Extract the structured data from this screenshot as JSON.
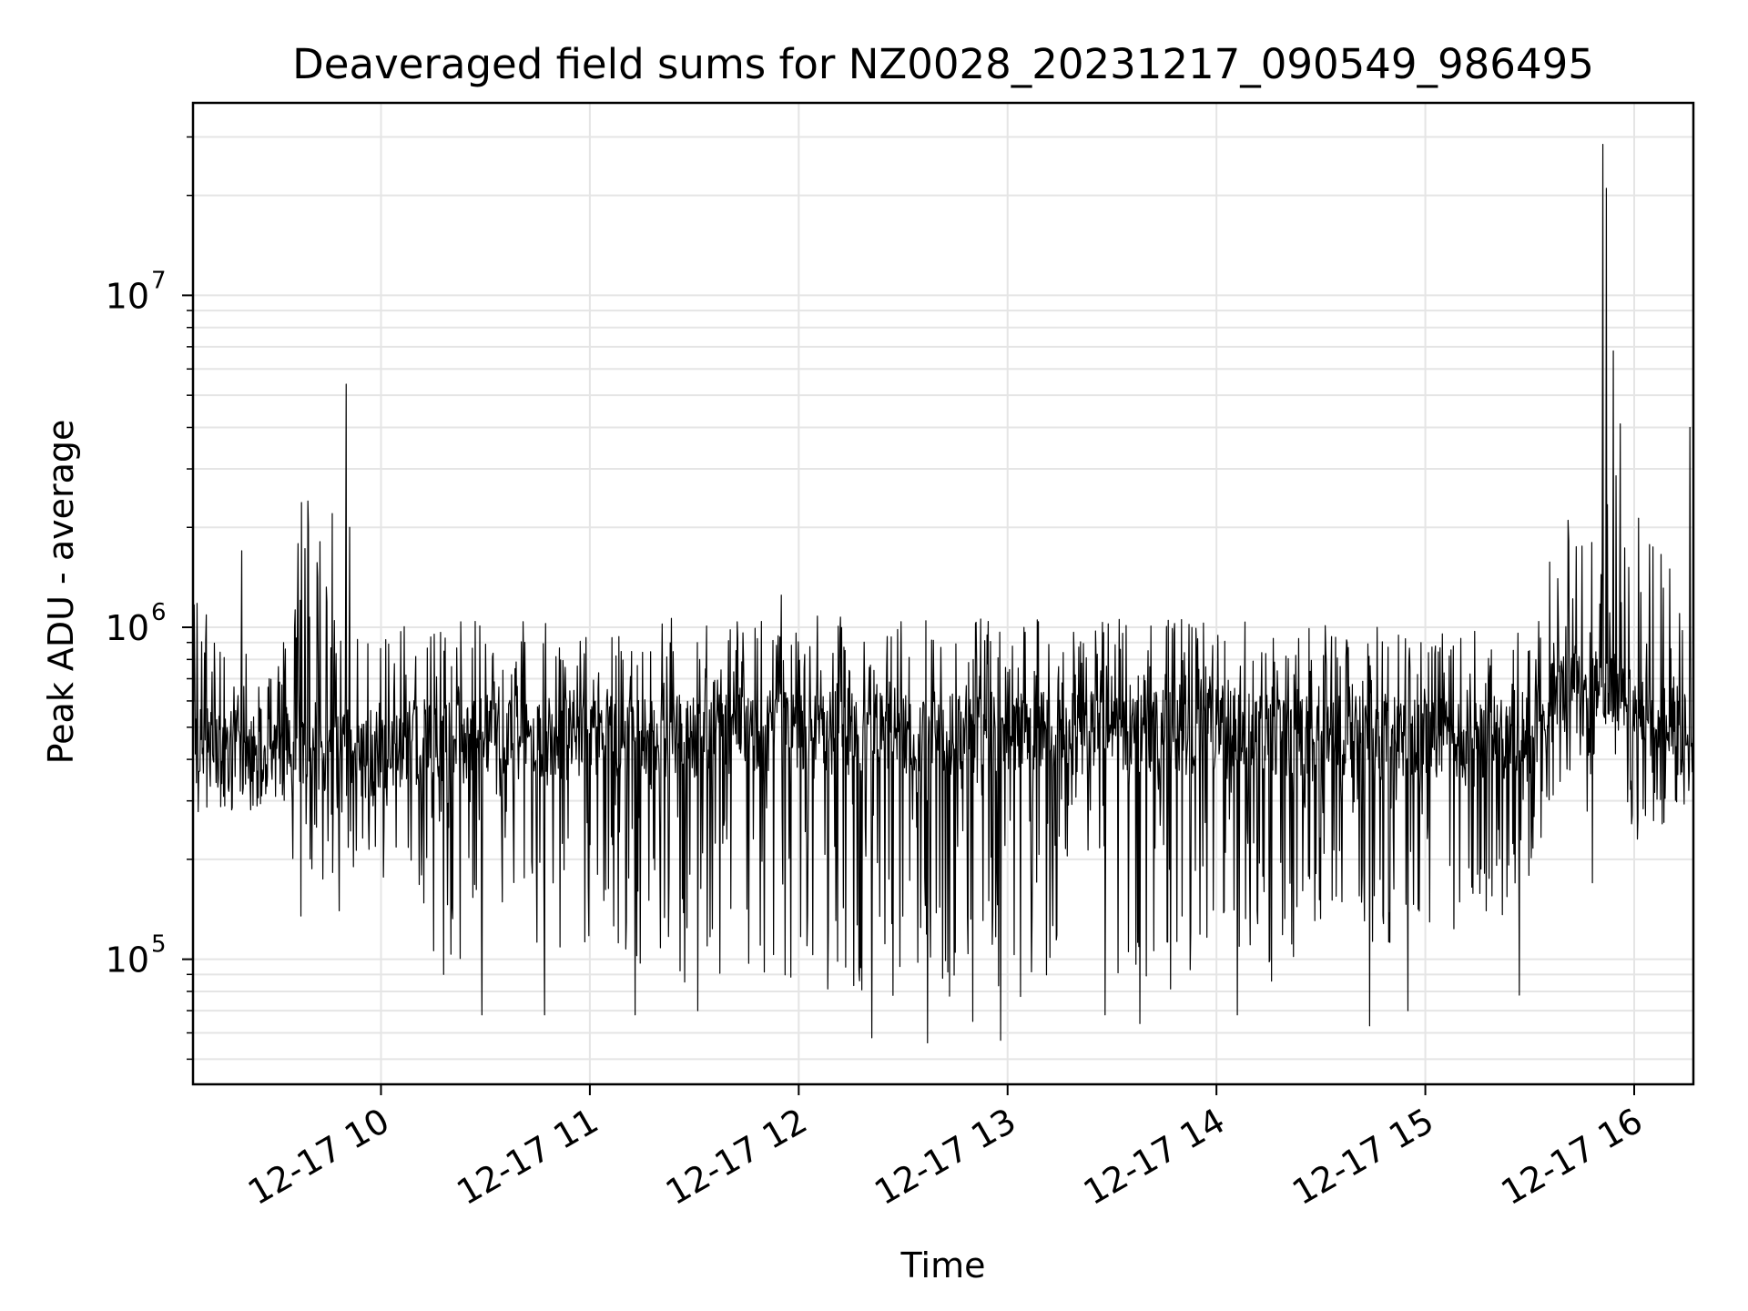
{
  "chart_data": {
    "type": "line",
    "title": "Deaveraged field sums for NZ0028_20231217_090549_986495",
    "xlabel": "Time",
    "ylabel": "Peak ADU - average",
    "yscale": "log",
    "grid": true,
    "line_color": "#000000",
    "grid_color": "#e5e5e5",
    "xlim": [
      "12-17 09:06",
      "12-17 16:17"
    ],
    "ylim": [
      42000,
      38000000
    ],
    "x_ticks": [
      {
        "time": "12-17 10:00",
        "label": "12-17 10"
      },
      {
        "time": "12-17 11:00",
        "label": "12-17 11"
      },
      {
        "time": "12-17 12:00",
        "label": "12-17 12"
      },
      {
        "time": "12-17 13:00",
        "label": "12-17 13"
      },
      {
        "time": "12-17 14:00",
        "label": "12-17 14"
      },
      {
        "time": "12-17 15:00",
        "label": "12-17 15"
      },
      {
        "time": "12-17 16:00",
        "label": "12-17 16"
      }
    ],
    "y_ticks": [
      {
        "value": 100000,
        "base": "10",
        "exp": "5"
      },
      {
        "value": 1000000,
        "base": "10",
        "exp": "6"
      },
      {
        "value": 10000000,
        "base": "10",
        "exp": "7"
      }
    ],
    "series": [
      {
        "baseline_profile": [
          {
            "time": "12-17 09:06",
            "median": 450000,
            "low": 260000,
            "high": 1400000
          },
          {
            "time": "12-17 09:30",
            "median": 400000,
            "low": 270000,
            "high": 900000
          },
          {
            "time": "12-17 09:36",
            "median": 450000,
            "low": 140000,
            "high": 2800000
          },
          {
            "time": "12-17 09:55",
            "median": 400000,
            "low": 190000,
            "high": 1000000
          },
          {
            "time": "12-17 10:15",
            "median": 450000,
            "low": 95000,
            "high": 1100000
          },
          {
            "time": "12-17 12:00",
            "median": 480000,
            "low": 70000,
            "high": 1150000
          },
          {
            "time": "12-17 14:00",
            "median": 480000,
            "low": 70000,
            "high": 1100000
          },
          {
            "time": "12-17 15:30",
            "median": 450000,
            "low": 130000,
            "high": 1000000
          },
          {
            "time": "12-17 15:36",
            "median": 600000,
            "low": 300000,
            "high": 1800000
          },
          {
            "time": "12-17 15:55",
            "median": 650000,
            "low": 200000,
            "high": 4000000
          },
          {
            "time": "12-17 16:17",
            "median": 450000,
            "low": 280000,
            "high": 1200000
          }
        ],
        "peaks": [
          {
            "time": "12-17 09:50",
            "value": 5400000
          },
          {
            "time": "12-17 09:37",
            "value": 2800000
          },
          {
            "time": "12-17 09:39",
            "value": 2400000
          },
          {
            "time": "12-17 09:46",
            "value": 2200000
          },
          {
            "time": "12-17 09:51",
            "value": 2000000
          },
          {
            "time": "12-17 09:20",
            "value": 1700000
          },
          {
            "time": "12-17 11:55",
            "value": 1250000
          },
          {
            "time": "12-17 12:58",
            "value": 1200000
          },
          {
            "time": "12-17 15:41",
            "value": 2100000
          },
          {
            "time": "12-17 15:51",
            "value": 28500000
          },
          {
            "time": "12-17 15:52",
            "value": 21000000
          },
          {
            "time": "12-17 15:54",
            "value": 6800000
          },
          {
            "time": "12-17 15:56",
            "value": 4100000
          },
          {
            "time": "12-17 16:16",
            "value": 4000000
          }
        ],
        "dips": [
          {
            "time": "12-17 09:37",
            "value": 135000
          },
          {
            "time": "12-17 09:48",
            "value": 140000
          },
          {
            "time": "12-17 10:18",
            "value": 90000
          },
          {
            "time": "12-17 10:29",
            "value": 68000
          },
          {
            "time": "12-17 10:47",
            "value": 68000
          },
          {
            "time": "12-17 11:13",
            "value": 68000
          },
          {
            "time": "12-17 11:31",
            "value": 70000
          },
          {
            "time": "12-17 12:21",
            "value": 58000
          },
          {
            "time": "12-17 12:37",
            "value": 56000
          },
          {
            "time": "12-17 12:50",
            "value": 65000
          },
          {
            "time": "12-17 12:58",
            "value": 57000
          },
          {
            "time": "12-17 13:28",
            "value": 68000
          },
          {
            "time": "12-17 13:38",
            "value": 64000
          },
          {
            "time": "12-17 14:06",
            "value": 68000
          },
          {
            "time": "12-17 14:44",
            "value": 63000
          },
          {
            "time": "12-17 14:55",
            "value": 70000
          },
          {
            "time": "12-17 15:27",
            "value": 78000
          },
          {
            "time": "12-17 15:48",
            "value": 170000
          }
        ]
      }
    ]
  }
}
